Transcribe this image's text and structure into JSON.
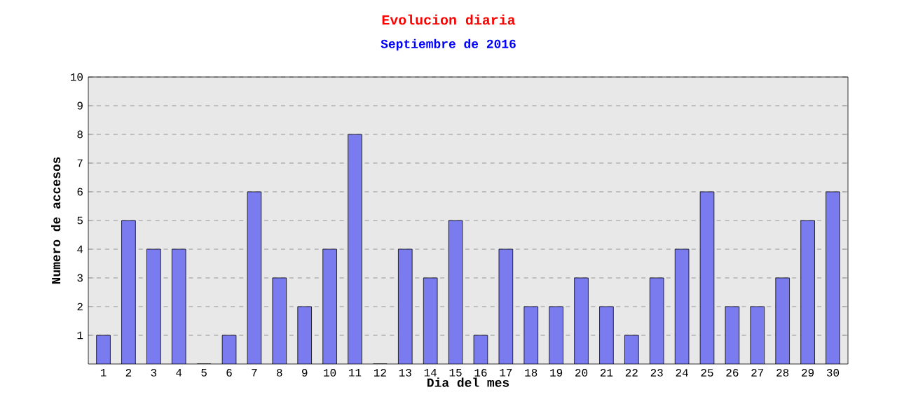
{
  "chart_data": {
    "type": "bar",
    "title": "Evolucion diaria",
    "subtitle": "Septiembre de 2016",
    "xlabel": "Dia del mes",
    "ylabel": "Numero de accesos",
    "categories": [
      "1",
      "2",
      "3",
      "4",
      "5",
      "6",
      "7",
      "8",
      "9",
      "10",
      "11",
      "12",
      "13",
      "14",
      "15",
      "16",
      "17",
      "18",
      "19",
      "20",
      "21",
      "22",
      "23",
      "24",
      "25",
      "26",
      "27",
      "28",
      "29",
      "30"
    ],
    "values": [
      1,
      5,
      4,
      4,
      0,
      1,
      6,
      3,
      2,
      4,
      8,
      0,
      4,
      3,
      5,
      1,
      4,
      2,
      2,
      3,
      2,
      1,
      3,
      4,
      6,
      2,
      2,
      3,
      5,
      6
    ],
    "color": "#7b7bf0",
    "ylim": [
      0,
      10
    ],
    "yticks": [
      1,
      2,
      3,
      4,
      5,
      6,
      7,
      8,
      9,
      10
    ],
    "grid": "y"
  }
}
